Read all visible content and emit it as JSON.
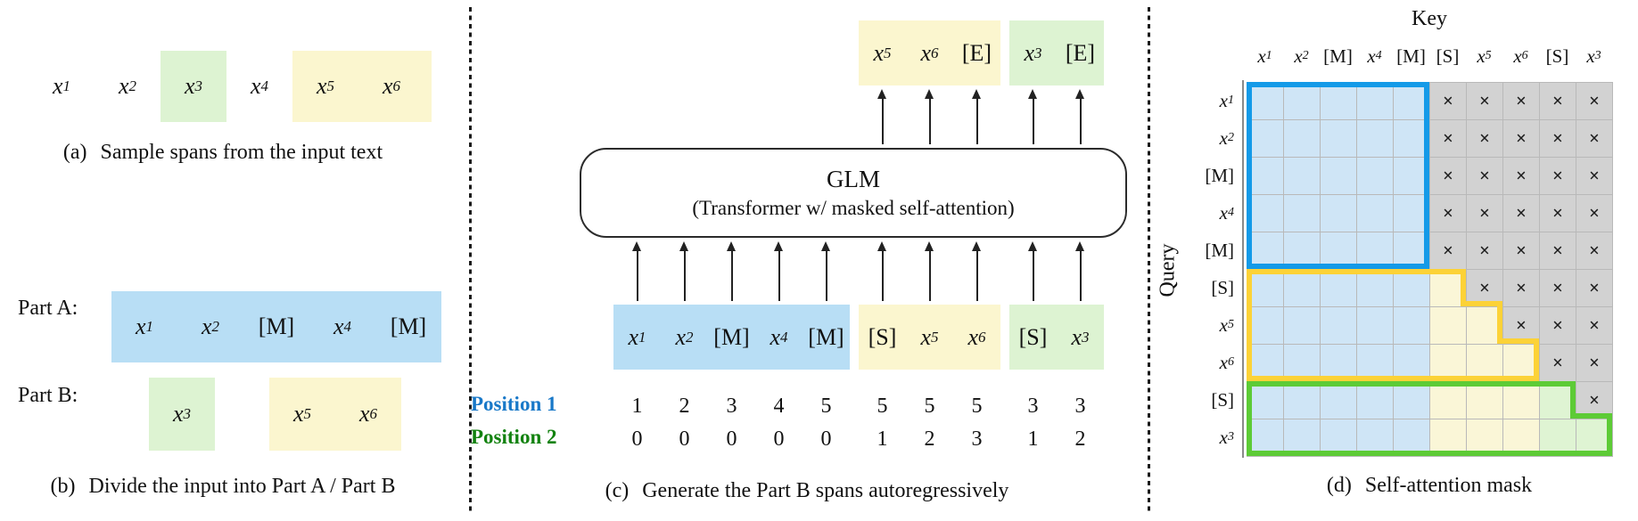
{
  "colors": {
    "block_blue": "#b8def5",
    "block_yellow": "#fbf6cf",
    "block_green": "#ddf3d2",
    "mask_blue": "#cfe5f6",
    "mask_yellow": "#faf6d7",
    "mask_green": "#dff4d3",
    "mask_gray": "#d2d2d2",
    "border_blue": "#149ae8",
    "border_yellow": "#fcd237",
    "border_green": "#5dcb36",
    "pos1": "#1878c8",
    "pos2": "#12820f"
  },
  "panel_a": {
    "tokens": [
      "x1",
      "x2",
      "x3",
      "x4",
      "x5",
      "x6"
    ],
    "green_token_index": 2,
    "yellow_token_range": [
      4,
      5
    ],
    "caption_prefix": "(a)",
    "caption": "Sample spans from the input text"
  },
  "panel_b": {
    "part_a_label": "Part A:",
    "part_a_tokens": [
      "x1",
      "x2",
      "[M]",
      "x4",
      "[M]"
    ],
    "part_b_label": "Part B:",
    "part_b_spans": [
      {
        "bg": "green",
        "tokens": [
          "x3"
        ]
      },
      {
        "bg": "yellow",
        "tokens": [
          "x5",
          "x6"
        ]
      }
    ],
    "caption_prefix": "(b)",
    "caption": "Divide the input into Part A / Part B"
  },
  "panel_c": {
    "output_groups": [
      {
        "bg": null,
        "tokens": [
          "",
          "",
          "",
          "",
          ""
        ]
      },
      {
        "bg": "yellow",
        "tokens": [
          "x5",
          "x6",
          "[E]"
        ]
      },
      {
        "bg": "green",
        "tokens": [
          "x3",
          "[E]"
        ]
      }
    ],
    "output_arrow_cols": [
      5,
      6,
      7,
      8,
      9
    ],
    "model_title": "GLM",
    "model_subtitle": "(Transformer w/ masked self-attention)",
    "input_arrow_cols": [
      0,
      1,
      2,
      3,
      4,
      5,
      6,
      7,
      8,
      9
    ],
    "input_groups": [
      {
        "bg": "blue",
        "tokens": [
          "x1",
          "x2",
          "[M]",
          "x4",
          "[M]"
        ]
      },
      {
        "bg": "yellow",
        "tokens": [
          "[S]",
          "x5",
          "x6"
        ]
      },
      {
        "bg": "green",
        "tokens": [
          "[S]",
          "x3"
        ]
      }
    ],
    "positions": [
      {
        "label": "Position 1",
        "color_key": "pos1",
        "values": [
          1,
          2,
          3,
          4,
          5,
          5,
          5,
          5,
          3,
          3
        ]
      },
      {
        "label": "Position 2",
        "color_key": "pos2",
        "values": [
          0,
          0,
          0,
          0,
          0,
          1,
          2,
          3,
          1,
          2
        ]
      }
    ],
    "caption_prefix": "(c)",
    "caption": "Generate the Part B spans autoregressively"
  },
  "panel_d": {
    "key_label": "Key",
    "query_label": "Query",
    "col_labels": [
      "x1",
      "x2",
      "[M]",
      "x4",
      "[M]",
      "[S]",
      "x5",
      "x6",
      "[S]",
      "x3"
    ],
    "row_labels": [
      "x1",
      "x2",
      "[M]",
      "x4",
      "[M]",
      "[S]",
      "x5",
      "x6",
      "[S]",
      "x3"
    ],
    "masked_symbol": "×",
    "mask": [
      [
        "A",
        "A",
        "A",
        "A",
        "A",
        "X",
        "X",
        "X",
        "X",
        "X"
      ],
      [
        "A",
        "A",
        "A",
        "A",
        "A",
        "X",
        "X",
        "X",
        "X",
        "X"
      ],
      [
        "A",
        "A",
        "A",
        "A",
        "A",
        "X",
        "X",
        "X",
        "X",
        "X"
      ],
      [
        "A",
        "A",
        "A",
        "A",
        "A",
        "X",
        "X",
        "X",
        "X",
        "X"
      ],
      [
        "A",
        "A",
        "A",
        "A",
        "A",
        "X",
        "X",
        "X",
        "X",
        "X"
      ],
      [
        "A",
        "A",
        "A",
        "A",
        "A",
        "B1",
        "X",
        "X",
        "X",
        "X"
      ],
      [
        "A",
        "A",
        "A",
        "A",
        "A",
        "B1",
        "B1",
        "X",
        "X",
        "X"
      ],
      [
        "A",
        "A",
        "A",
        "A",
        "A",
        "B1",
        "B1",
        "B1",
        "X",
        "X"
      ],
      [
        "A",
        "A",
        "A",
        "A",
        "A",
        "B1",
        "B1",
        "B1",
        "B2",
        "X"
      ],
      [
        "A",
        "A",
        "A",
        "A",
        "A",
        "B1",
        "B1",
        "B1",
        "B2",
        "B2"
      ]
    ],
    "outlines": [
      {
        "color_key": "border_blue",
        "top_row": 0,
        "points": [
          [
            0,
            0
          ],
          [
            5,
            0
          ],
          [
            5,
            5
          ],
          [
            0,
            5
          ]
        ]
      },
      {
        "color_key": "border_yellow",
        "top_row": 5,
        "points": [
          [
            0,
            5
          ],
          [
            6,
            5
          ],
          [
            6,
            6
          ],
          [
            7,
            6
          ],
          [
            7,
            7
          ],
          [
            8,
            7
          ],
          [
            8,
            8
          ],
          [
            0,
            8
          ]
        ]
      },
      {
        "color_key": "border_green",
        "top_row": 8,
        "points": [
          [
            0,
            8
          ],
          [
            9,
            8
          ],
          [
            9,
            9
          ],
          [
            10,
            9
          ],
          [
            10,
            10
          ],
          [
            0,
            10
          ]
        ]
      }
    ],
    "caption_prefix": "(d)",
    "caption": "Self-attention mask"
  }
}
